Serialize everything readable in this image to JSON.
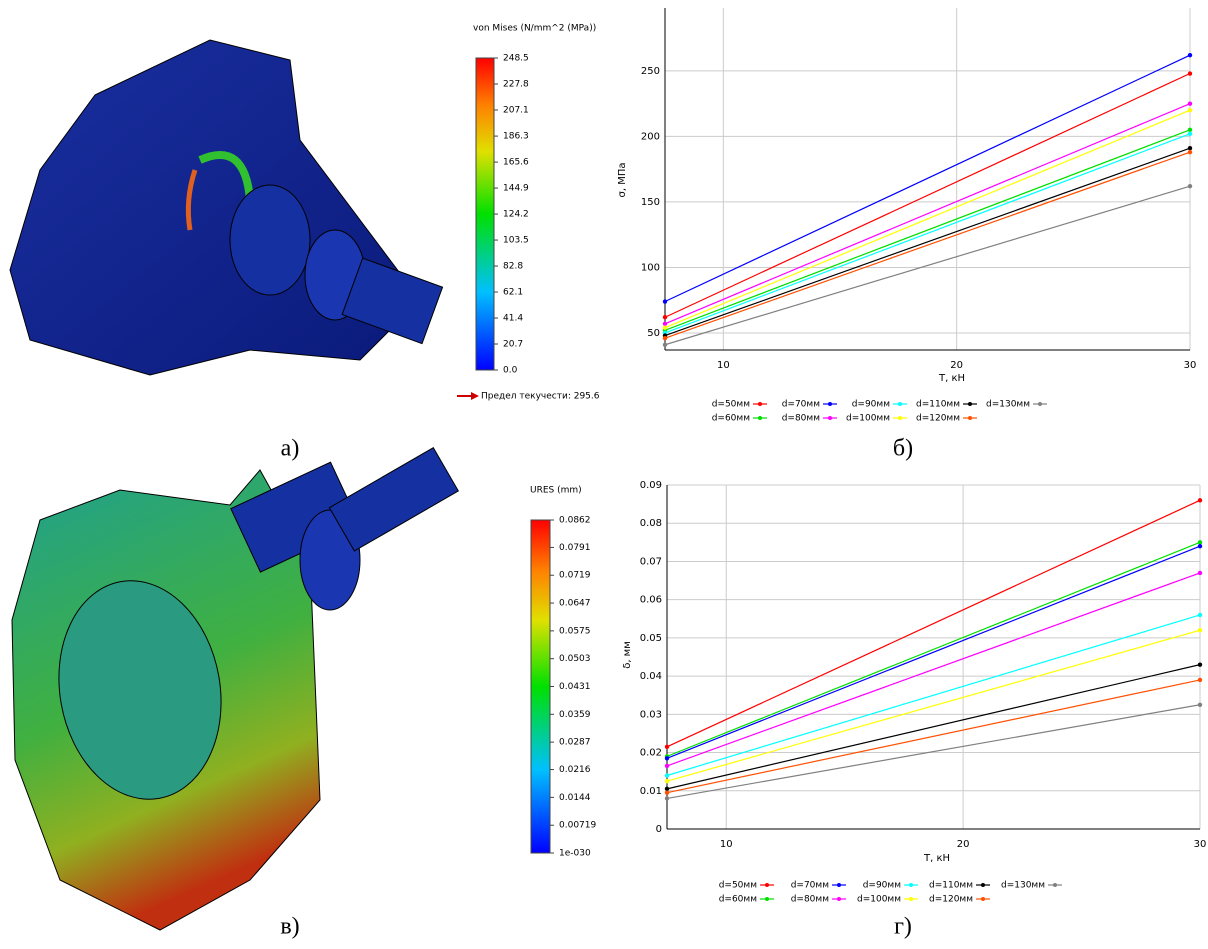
{
  "panels": [
    {
      "colorbar_title": "von Mises (N/mm^2 (MPa))",
      "colorbar_ticks": [
        248.5,
        227.8,
        207.1,
        186.3,
        165.6,
        144.9,
        124.2,
        103.5,
        82.8,
        62.1,
        41.4,
        20.7,
        {
          "value": 0,
          "label": "0.0"
        }
      ],
      "note": "Предел текучести: 295.6",
      "caption": "а)"
    },
    {
      "colorbar_title": "URES (mm)",
      "colorbar_ticks": [
        0.0862,
        0.0791,
        0.0719,
        0.0647,
        0.0575,
        0.0503,
        0.0431,
        0.0359,
        0.0287,
        0.0216,
        0.0144,
        0.00719,
        {
          "value": 1e-30,
          "label": "1e-030"
        }
      ],
      "caption": "в)"
    }
  ],
  "chart_data": [
    {
      "type": "line",
      "caption": "б)",
      "x_label": "T, кН",
      "y_label": "σ, МПа",
      "x": [
        7.5,
        30
      ],
      "xlim": [
        7.5,
        30
      ],
      "xticks": [
        10,
        20,
        30
      ],
      "ylim": [
        37,
        298
      ],
      "yticks": [
        50,
        100,
        150,
        200,
        250
      ],
      "grid": true,
      "series": [
        {
          "name": "d=50мм",
          "color": "#ff0000",
          "values": [
            62,
            248
          ]
        },
        {
          "name": "d=60мм",
          "color": "#00e000",
          "values": [
            52,
            205
          ]
        },
        {
          "name": "d=70мм",
          "color": "#0000ff",
          "values": [
            74,
            262
          ]
        },
        {
          "name": "d=80мм",
          "color": "#ff00ff",
          "values": [
            57,
            225
          ]
        },
        {
          "name": "d=90мм",
          "color": "#00ffff",
          "values": [
            50,
            202
          ]
        },
        {
          "name": "d=100мм",
          "color": "#ffff00",
          "values": [
            54,
            220
          ]
        },
        {
          "name": "d=110мм",
          "color": "#000000",
          "values": [
            48,
            191
          ]
        },
        {
          "name": "d=120мм",
          "color": "#ff5000",
          "values": [
            46,
            188
          ]
        },
        {
          "name": "d=130мм",
          "color": "#808080",
          "values": [
            41,
            162
          ]
        }
      ]
    },
    {
      "type": "line",
      "caption": "г)",
      "x_label": "T, кН",
      "y_label": "δ, мм",
      "x": [
        7.5,
        30
      ],
      "xlim": [
        7.5,
        30
      ],
      "xticks": [
        10,
        20,
        30
      ],
      "ylim": [
        0,
        0.09
      ],
      "yticks": [
        0,
        0.01,
        0.02,
        0.03,
        0.04,
        0.05,
        0.06,
        0.07,
        0.08,
        0.09
      ],
      "grid": true,
      "series": [
        {
          "name": "d=50мм",
          "color": "#ff0000",
          "values": [
            0.0215,
            0.086
          ]
        },
        {
          "name": "d=60мм",
          "color": "#00e000",
          "values": [
            0.019,
            0.075
          ]
        },
        {
          "name": "d=70мм",
          "color": "#0000ff",
          "values": [
            0.0185,
            0.074
          ]
        },
        {
          "name": "d=80мм",
          "color": "#ff00ff",
          "values": [
            0.0165,
            0.067
          ]
        },
        {
          "name": "d=90мм",
          "color": "#00ffff",
          "values": [
            0.014,
            0.056
          ]
        },
        {
          "name": "d=100мм",
          "color": "#ffff00",
          "values": [
            0.0125,
            0.052
          ]
        },
        {
          "name": "d=110мм",
          "color": "#000000",
          "values": [
            0.0105,
            0.043
          ]
        },
        {
          "name": "d=120мм",
          "color": "#ff5000",
          "values": [
            0.0095,
            0.039
          ]
        },
        {
          "name": "d=130мм",
          "color": "#808080",
          "values": [
            0.008,
            0.0325
          ]
        }
      ]
    }
  ]
}
